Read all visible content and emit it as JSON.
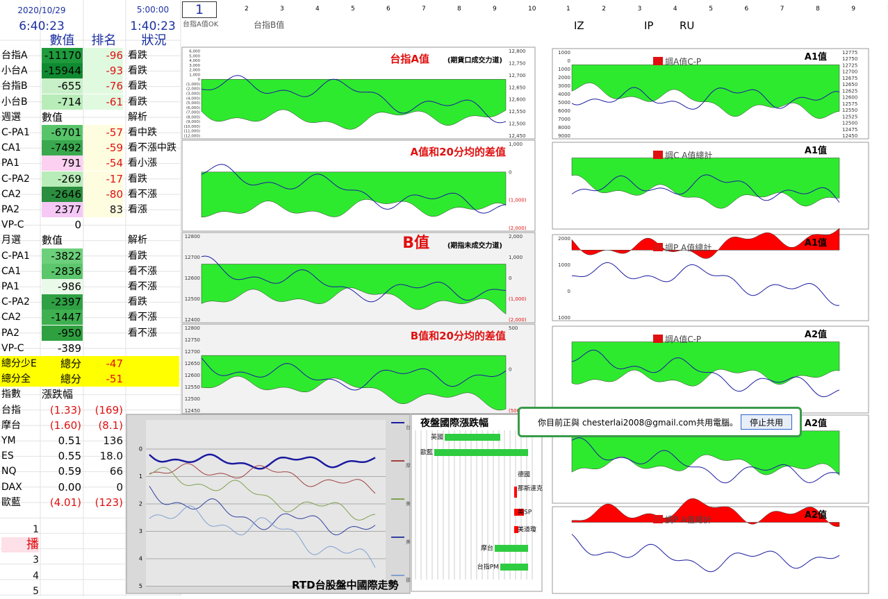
{
  "header": {
    "date": "2020/10/29",
    "time": "6:40:23",
    "t1": "5:00:00",
    "t2": "1:40:23",
    "cell": "1",
    "cols_left": [
      "2",
      "3",
      "4",
      "5",
      "6",
      "7",
      "8",
      "9",
      "10"
    ],
    "cols_right": [
      "1",
      "2",
      "3",
      "4",
      "5",
      "6",
      "7",
      "8",
      "9",
      "10"
    ],
    "labels": [
      "台指A值OK",
      "台指B值"
    ],
    "tags": [
      "IZ",
      "IP",
      "RU"
    ]
  },
  "table": {
    "head": [
      "數值",
      "排名",
      "狀況"
    ],
    "rows": [
      {
        "label": "台指A",
        "value": "-11170",
        "rank": "-96",
        "status": "看跌"
      },
      {
        "label": "小台A",
        "value": "-15944",
        "rank": "-93",
        "status": "看跌"
      },
      {
        "label": "台指B",
        "value": "-655",
        "rank": "-76",
        "status": "看跌"
      },
      {
        "label": "小台B",
        "value": "-714",
        "rank": "-61",
        "status": "看跌"
      },
      {
        "label": "週選",
        "value": "數值",
        "status": "解析"
      },
      {
        "label": "C-PA1",
        "value": "-6701",
        "rank": "-57",
        "status": "看中跌"
      },
      {
        "label": "CA1",
        "value": "-7492",
        "rank": "-59",
        "status": "看不漲中跌"
      },
      {
        "label": "PA1",
        "value": "791",
        "rank": "-54",
        "status": "看小漲"
      },
      {
        "label": "C-PA2",
        "value": "-269",
        "rank": "-17",
        "status": "看跌"
      },
      {
        "label": "CA2",
        "value": "-2646",
        "rank": "-80",
        "status": "看不漲"
      },
      {
        "label": "PA2",
        "value": "2377",
        "rank": "83",
        "status": "看漲"
      },
      {
        "label": "VP-C",
        "value": "0"
      },
      {
        "label": "月選",
        "value": "數值",
        "status": "解析"
      },
      {
        "label": "C-PA1",
        "value": "-3822",
        "status": "看跌"
      },
      {
        "label": "CA1",
        "value": "-2836",
        "status": "看不漲"
      },
      {
        "label": "PA1",
        "value": "-986",
        "status": "看不漲"
      },
      {
        "label": "C-PA2",
        "value": "-2397",
        "status": "看跌"
      },
      {
        "label": "CA2",
        "value": "-1447",
        "status": "看不漲"
      },
      {
        "label": "PA2",
        "value": "-950",
        "status": "看不漲"
      },
      {
        "label": "VP-C",
        "value": "-389"
      },
      {
        "label": "總分少E",
        "value": "總分",
        "rank": "-47"
      },
      {
        "label": "總分全",
        "value": "總分",
        "rank": "-51"
      },
      {
        "label": "指數",
        "value": "漲跌幅"
      },
      {
        "label": "台指",
        "value": "(1.33)",
        "rank": "(169)"
      },
      {
        "label": "摩台",
        "value": "(1.60)",
        "rank": "(8.1)"
      },
      {
        "label": "YM",
        "value": "0.51",
        "rank": "136"
      },
      {
        "label": "ES",
        "value": "0.55",
        "rank": "18.0"
      },
      {
        "label": "NQ",
        "value": "0.59",
        "rank": "66"
      },
      {
        "label": "DAX",
        "value": "0.00",
        "rank": "0"
      },
      {
        "label": "歐藍",
        "value": "(4.01)",
        "rank": "(123)"
      }
    ],
    "footer": [
      "1",
      "播",
      "3",
      "4",
      "5"
    ]
  },
  "panels": [
    {
      "title": "台指A值",
      "sub": "(期貨口成交力道)",
      "left": [
        "6,000",
        "5,000",
        "4,000",
        "3,000",
        "2,000",
        "1,000",
        "0",
        "(1,000)",
        "(2,000)",
        "(3,000)",
        "(4,000)",
        "(5,000)",
        "(6,000)",
        "(7,000)",
        "(8,000)",
        "(9,000)",
        "(10,000)",
        "(11,000)",
        "(12,000)"
      ],
      "right": [
        "12,800",
        "12,750",
        "12,700",
        "12,650",
        "12,600",
        "12,550",
        "12,500",
        "12,450"
      ]
    },
    {
      "title": "A值和20分均的差值",
      "right": [
        "1,000",
        "0",
        "(1,000)",
        "(2,000)"
      ]
    },
    {
      "title": "B值",
      "sub": "(期指未成交力道)",
      "left": [
        "12800",
        "12700",
        "12600",
        "12500",
        "12400"
      ],
      "right": [
        "2,000",
        "1,000",
        "0",
        "(1,000)",
        "(2,000)"
      ]
    },
    {
      "title": "B值和20分均的差值",
      "left": [
        "12800",
        "12750",
        "12700",
        "12650",
        "12600",
        "12550",
        "12500",
        "12450"
      ],
      "right": [
        "500",
        "0",
        "(500)"
      ]
    },
    {
      "title": "A1值",
      "legend": "調A值C-P",
      "left": [
        "1000",
        "0",
        "1000",
        "2000",
        "3000",
        "4000",
        "5000",
        "6000",
        "7000",
        "8000",
        "9000"
      ],
      "right": [
        "12775",
        "12750",
        "12725",
        "12700",
        "12675",
        "12650",
        "12625",
        "12600",
        "12575",
        "12550",
        "12525",
        "12500",
        "12475",
        "12450"
      ]
    },
    {
      "title": "A1值",
      "legend": "調C A值總計"
    },
    {
      "title": "A1值",
      "legend": "調P A值總計",
      "left": [
        "2000",
        "1000",
        "0",
        "1000"
      ]
    },
    {
      "title": "A2值",
      "legend": "調A值C-P"
    },
    {
      "title": "A2值"
    },
    {
      "title": "A2值",
      "legend": "調P A值總計"
    }
  ],
  "intl": {
    "title": "RTD台股盤中國際走勢",
    "yticks": [
      "0",
      "1",
      "2",
      "3",
      "4",
      "5"
    ],
    "legend": [
      "台指PM",
      "摩台",
      "美道瓊",
      "美SP",
      "那斯達克"
    ]
  },
  "night": {
    "title": "夜盤國際漲跌幅",
    "bars": [
      "英國",
      "歐藍",
      "德國",
      "那斯達克",
      "美SP",
      "美道瓊",
      "摩台",
      "台指PM"
    ]
  },
  "popup": {
    "text": "你目前正與 chesterlai2008@gmail.com共用電腦。",
    "button": "停止共用"
  }
}
